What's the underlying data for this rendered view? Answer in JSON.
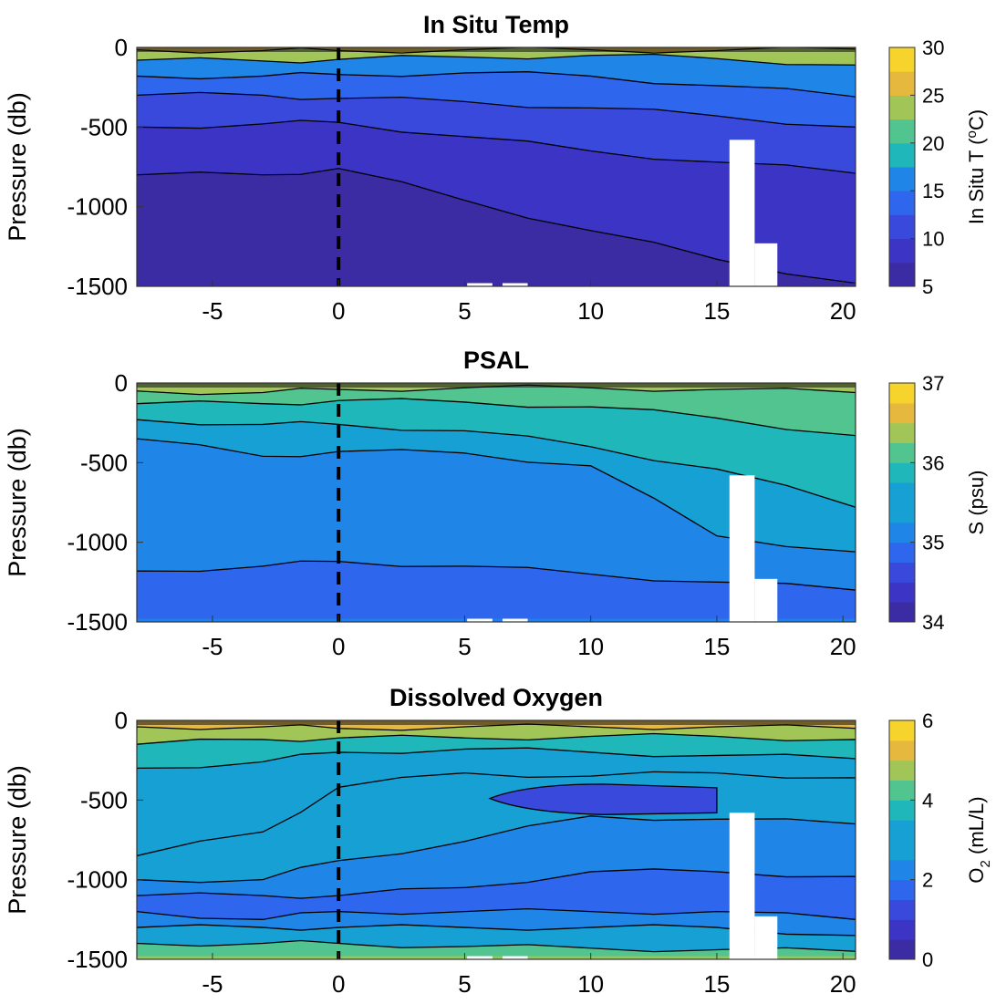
{
  "chart_data": [
    {
      "type": "heatmap",
      "title": "In Situ Temp",
      "ylabel": "Pressure (db)",
      "xlabel": "",
      "xlim": [
        -8,
        20.5
      ],
      "ylim": [
        -1500,
        0
      ],
      "xticks": [
        -5,
        0,
        5,
        10,
        15,
        20
      ],
      "yticks": [
        0,
        -500,
        -1000,
        -1500
      ],
      "dashed_line_x": 0,
      "colorbar": {
        "label_main": "In Situ T (",
        "label_sup": "o",
        "label_tail": "C)",
        "range": [
          5,
          30
        ],
        "ticks": [
          30,
          25,
          20,
          15,
          10,
          5
        ],
        "level_step": 2.5,
        "colors": [
          "#3b2ca3",
          "#3b34c4",
          "#3949dc",
          "#2f66ee",
          "#1f85e6",
          "#16a0d4",
          "#1fb7ba",
          "#52c48f",
          "#a1c657",
          "#e7b83e",
          "#f7d42b"
        ]
      },
      "surface_value": 27,
      "layers": [
        {
          "level": 25,
          "depth": [
            -15,
            -20,
            -20,
            -15,
            -15,
            -20,
            -10
          ]
        },
        {
          "level": 15,
          "depth": [
            -80,
            -85,
            -75,
            -60,
            -50,
            -70,
            -110
          ]
        },
        {
          "level": 12.5,
          "depth": [
            -180,
            -180,
            -170,
            -160,
            -180,
            -240,
            -310
          ]
        },
        {
          "level": 10,
          "depth": [
            -300,
            -300,
            -320,
            -340,
            -380,
            -430,
            -500
          ]
        },
        {
          "level": 7.5,
          "depth": [
            -500,
            -480,
            -470,
            -560,
            -650,
            -720,
            -790
          ]
        },
        {
          "level": 5,
          "depth": [
            -800,
            -800,
            -760,
            -960,
            -1150,
            -1330,
            -1480
          ]
        }
      ],
      "bottom_value": 4.5
    },
    {
      "type": "heatmap",
      "title": "PSAL",
      "ylabel": "Pressure (db)",
      "xlabel": "",
      "xlim": [
        -8,
        20.5
      ],
      "ylim": [
        -1500,
        0
      ],
      "xticks": [
        -5,
        0,
        5,
        10,
        15,
        20
      ],
      "yticks": [
        0,
        -500,
        -1000,
        -1500
      ],
      "dashed_line_x": 0,
      "colorbar": {
        "label_main": "S (psu)",
        "range": [
          34,
          37
        ],
        "ticks": [
          37,
          36,
          35,
          34
        ],
        "level_step": 0.25,
        "colors": [
          "#3b2ca3",
          "#3b34c4",
          "#3949dc",
          "#2f66ee",
          "#1f85e6",
          "#16a0d4",
          "#1fb7ba",
          "#52c48f",
          "#a1c657",
          "#e7b83e",
          "#f7d42b"
        ]
      },
      "surface_value": 36.3,
      "layers": [
        {
          "level": 36,
          "depth": [
            -50,
            -60,
            -40,
            -30,
            -30,
            -40,
            -60
          ]
        },
        {
          "level": 35.75,
          "depth": [
            -130,
            -130,
            -110,
            -120,
            -150,
            -220,
            -330
          ]
        },
        {
          "level": 35.5,
          "depth": [
            -230,
            -260,
            -260,
            -300,
            -400,
            -540,
            -780
          ]
        },
        {
          "level": 35.25,
          "depth": [
            -350,
            -460,
            -430,
            -440,
            -520,
            -960,
            -1060
          ]
        },
        {
          "level": 35,
          "depth": [
            -1180,
            -1150,
            -1120,
            -1150,
            -1200,
            -1250,
            -1300
          ]
        }
      ],
      "bottom_value": 35.1
    },
    {
      "type": "heatmap",
      "title": "Dissolved Oxygen",
      "ylabel": "Pressure (db)",
      "xlabel": "",
      "xlim": [
        -8,
        20.5
      ],
      "ylim": [
        -1500,
        0
      ],
      "xticks": [
        -5,
        0,
        5,
        10,
        15,
        20
      ],
      "yticks": [
        0,
        -500,
        -1000,
        -1500
      ],
      "dashed_line_x": 0,
      "colorbar": {
        "label_main": "O",
        "label_sub": "2",
        "label_tail": " (mL/L)",
        "range": [
          0,
          6
        ],
        "ticks": [
          6,
          4,
          2,
          0
        ],
        "level_step": 0.5,
        "colors": [
          "#3b2ca3",
          "#3b34c4",
          "#3949dc",
          "#2f66ee",
          "#1f85e6",
          "#16a0d4",
          "#1fb7ba",
          "#52c48f",
          "#a1c657",
          "#e7b83e",
          "#f7d42b"
        ]
      },
      "surface_value": 5,
      "layers": [
        {
          "level": 4.5,
          "depth": [
            -40,
            -40,
            -50,
            -40,
            -40,
            -40,
            -50
          ]
        },
        {
          "level": 3.5,
          "depth": [
            -150,
            -120,
            -110,
            -110,
            -100,
            -100,
            -120
          ]
        },
        {
          "level": 3.2,
          "depth": [
            -300,
            -260,
            -200,
            -180,
            -200,
            -220,
            -240
          ]
        },
        {
          "level": 2.8,
          "depth": [
            -850,
            -700,
            -420,
            -330,
            -350,
            -330,
            -360
          ]
        },
        {
          "level": 2.2,
          "depth": [
            -1000,
            -1000,
            -880,
            -760,
            -600,
            -620,
            -650
          ]
        },
        {
          "level": 1.8,
          "depth": [
            -1100,
            -1100,
            -1100,
            -1050,
            -950,
            -950,
            -980
          ]
        },
        {
          "level": 2.5,
          "depth": [
            -1200,
            -1250,
            -1200,
            -1200,
            -1200,
            -1200,
            -1250
          ]
        },
        {
          "level": 3.2,
          "depth": [
            -1300,
            -1300,
            -1300,
            -1300,
            -1300,
            -1300,
            -1350
          ]
        },
        {
          "level": 4.2,
          "depth": [
            -1400,
            -1400,
            -1400,
            -1420,
            -1430,
            -1440,
            -1450
          ]
        }
      ],
      "bottom_value": 4.8,
      "low_patch": {
        "x_range": [
          6,
          15
        ],
        "depth_range": [
          -400,
          -580
        ],
        "value": 1.2
      }
    }
  ],
  "layer_x": [
    -8,
    -3,
    0,
    5,
    10,
    15,
    20.5
  ],
  "missing_data": [
    {
      "x": [
        15.5,
        16.5
      ],
      "y": [
        -580,
        -1500
      ]
    },
    {
      "x": [
        16.5,
        17.4
      ],
      "y": [
        -1230,
        -1500
      ]
    },
    {
      "x": [
        5.1,
        6.1
      ],
      "y": [
        -1480,
        -1500
      ]
    },
    {
      "x": [
        6.5,
        7.5
      ],
      "y": [
        -1480,
        -1500
      ]
    }
  ]
}
